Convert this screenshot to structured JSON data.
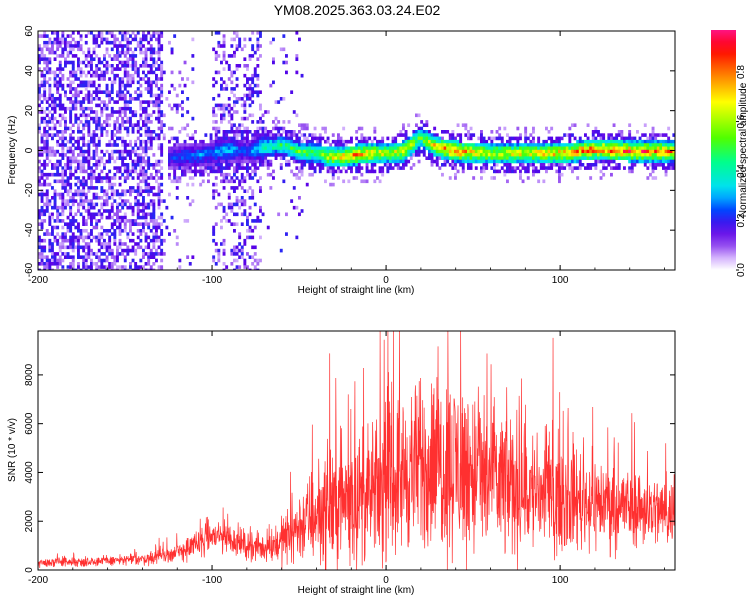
{
  "title": "YM08.2025.363.03.24.E02",
  "chart_data": [
    {
      "type": "heatmap",
      "xlabel": "Height of straight line (km)",
      "ylabel": "Frequency (Hz)",
      "xlim": [
        -200,
        166
      ],
      "ylim": [
        -60,
        60
      ],
      "x_ticks": [
        -200,
        -100,
        0,
        100
      ],
      "y_ticks": [
        -60,
        -40,
        -20,
        0,
        20,
        40,
        60
      ],
      "colorbar": {
        "label": "Normalized spectral amplitude",
        "range": [
          0.0,
          0.97
        ],
        "ticks": [
          0.0,
          0.2,
          0.4,
          0.6,
          0.8
        ],
        "tick_labels": [
          "0.0",
          "0.2",
          "0.4",
          "0.6",
          "0.8"
        ]
      },
      "ridge_profile": {
        "x": [
          -125,
          -110,
          -100,
          -90,
          -80,
          -70,
          -60,
          -50,
          -40,
          -30,
          -20,
          -10,
          0,
          10,
          20,
          30,
          40,
          60,
          80,
          100,
          120,
          140,
          160,
          166
        ],
        "doppler_hz": [
          -3,
          -2,
          -1,
          1,
          0,
          2,
          3,
          0,
          -1,
          -3,
          -2,
          -1,
          -1,
          0,
          7,
          2,
          0,
          -1,
          -1,
          -1,
          1,
          0,
          0,
          0
        ],
        "peak_amplitude": [
          0.25,
          0.3,
          0.3,
          0.35,
          0.25,
          0.45,
          0.5,
          0.55,
          0.6,
          0.75,
          0.85,
          0.8,
          0.7,
          0.75,
          0.6,
          0.8,
          0.9,
          0.7,
          0.75,
          0.8,
          0.9,
          0.9,
          0.85,
          0.8
        ]
      },
      "noise_regions": [
        {
          "x_range": [
            -200,
            -128
          ],
          "density": "high"
        },
        {
          "x_range": [
            -128,
            -110
          ],
          "density": "low"
        },
        {
          "x_range": [
            -100,
            -72
          ],
          "density": "medium"
        },
        {
          "x_range": [
            -72,
            -45
          ],
          "density": "sparse"
        }
      ]
    },
    {
      "type": "line",
      "xlabel": "Height of straight line (km)",
      "ylabel": "SNR (10 * v/v)",
      "xlim": [
        -200,
        166
      ],
      "ylim": [
        0,
        9800
      ],
      "x_ticks": [
        -200,
        -100,
        0,
        100
      ],
      "y_ticks": [
        0,
        2000,
        4000,
        6000,
        8000
      ],
      "series": [
        {
          "color": "#ff3030",
          "x": [
            -200,
            -180,
            -160,
            -140,
            -120,
            -110,
            -100,
            -90,
            -80,
            -70,
            -60,
            -50,
            -40,
            -30,
            -20,
            -10,
            0,
            10,
            20,
            30,
            40,
            50,
            60,
            70,
            80,
            90,
            100,
            110,
            120,
            130,
            140,
            150,
            160,
            166
          ],
          "values": [
            300,
            320,
            380,
            450,
            700,
            1000,
            1400,
            1300,
            1000,
            900,
            1200,
            1800,
            2300,
            2700,
            3000,
            2900,
            3500,
            4000,
            4200,
            4400,
            4300,
            4000,
            3700,
            3500,
            3300,
            3100,
            3000,
            2900,
            2800,
            2700,
            2600,
            2500,
            2400,
            2300
          ],
          "spread": [
            120,
            120,
            130,
            150,
            250,
            350,
            450,
            400,
            350,
            350,
            600,
            900,
            1300,
            1600,
            1700,
            1600,
            1800,
            2000,
            2100,
            2300,
            2400,
            2200,
            2100,
            1900,
            1700,
            1500,
            1400,
            1300,
            1200,
            1100,
            1000,
            950,
            900,
            850
          ]
        }
      ]
    }
  ]
}
